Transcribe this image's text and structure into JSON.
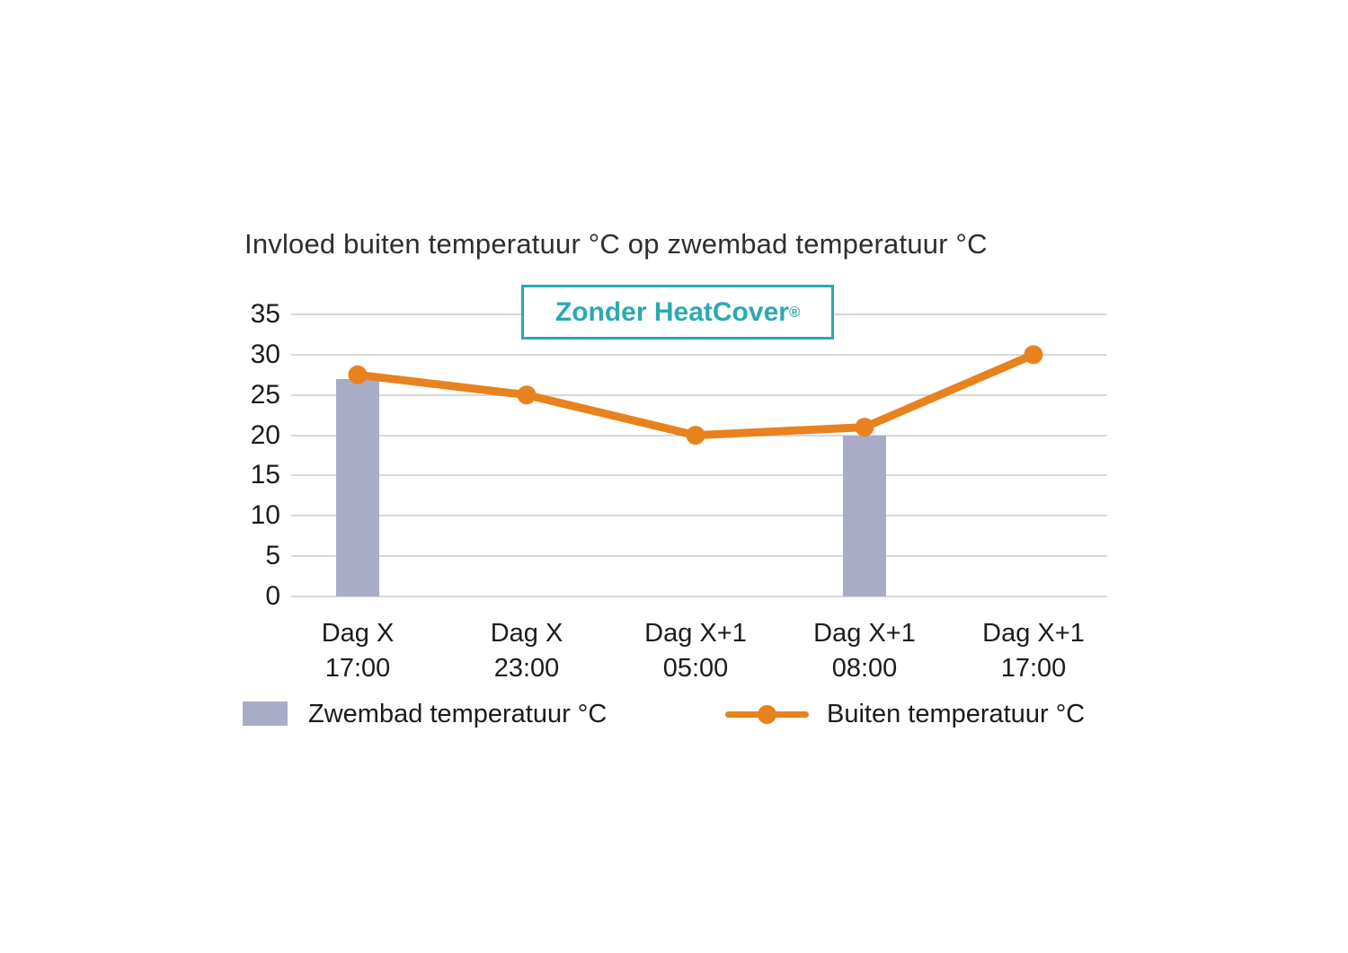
{
  "chart_data": {
    "type": "combo-bar-line",
    "title": "Invloed buiten temperatuur °C op zwembad temperatuur °C",
    "badge_text": "Zonder HeatCover",
    "badge_mark": "®",
    "categories": [
      [
        "Dag X",
        "17:00"
      ],
      [
        "Dag X",
        "23:00"
      ],
      [
        "Dag X+1",
        "05:00"
      ],
      [
        "Dag X+1",
        "08:00"
      ],
      [
        "Dag X+1",
        "17:00"
      ]
    ],
    "y_ticks": [
      0,
      5,
      10,
      15,
      20,
      25,
      30,
      35
    ],
    "ylim": [
      0,
      35
    ],
    "grid": true,
    "legend_position": "bottom",
    "series": [
      {
        "name": "Zwembad temperatuur °C",
        "type": "bar",
        "color": "#A9ACC7",
        "values": [
          27,
          null,
          null,
          20,
          null
        ]
      },
      {
        "name": "Buiten temperatuur °C",
        "type": "line",
        "color": "#E8821E",
        "values": [
          27.5,
          25,
          20,
          21,
          30
        ]
      }
    ]
  },
  "colors": {
    "background": "#FFFFFF",
    "bar": "#A9ACC7",
    "line": "#E8821E",
    "accent_teal": "#2BA9B3",
    "grid": "#D8D8D8",
    "title_text": "#2E2E2E",
    "axis_text": "#1C1C1C"
  }
}
